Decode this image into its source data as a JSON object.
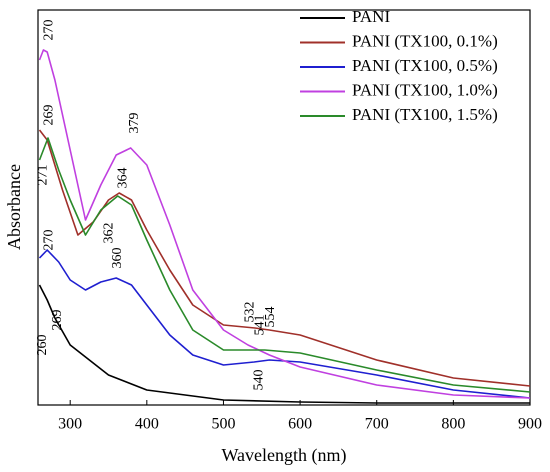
{
  "chart_data": {
    "type": "line",
    "xlabel": "Wavelength (nm)",
    "ylabel": "Absorbance",
    "xlim": [
      258,
      900
    ],
    "xticks": [
      300,
      400,
      500,
      600,
      700,
      800,
      900
    ],
    "ylim": [
      0,
      395
    ],
    "legend": "upper right",
    "series": [
      {
        "name": "PANI",
        "color": "#000000",
        "x": [
          260,
          270,
          280,
          300,
          350,
          400,
          500,
          600,
          700,
          900
        ],
        "values": [
          120,
          105,
          87,
          60,
          30,
          15,
          5,
          3,
          2,
          2
        ]
      },
      {
        "name": "PANI (TX100, 0.1%)",
        "color": "#a0302a",
        "x": [
          260,
          270,
          290,
          310,
          330,
          350,
          364,
          380,
          400,
          430,
          460,
          500,
          541,
          560,
          600,
          700,
          800,
          900
        ],
        "values": [
          275,
          265,
          215,
          170,
          183,
          205,
          212,
          205,
          175,
          135,
          100,
          80,
          77,
          75,
          70,
          45,
          27,
          19
        ]
      },
      {
        "name": "PANI (TX100, 0.5%)",
        "color": "#1f1fd0",
        "x": [
          260,
          270,
          285,
          300,
          320,
          340,
          360,
          380,
          400,
          430,
          460,
          500,
          540,
          560,
          600,
          700,
          800,
          900
        ],
        "values": [
          147,
          155,
          143,
          125,
          115,
          123,
          127,
          120,
          100,
          70,
          50,
          40,
          43,
          45,
          43,
          30,
          15,
          7
        ]
      },
      {
        "name": "PANI (TX100, 1.0%)",
        "color": "#c040e0",
        "x": [
          260,
          265,
          270,
          280,
          300,
          320,
          340,
          360,
          379,
          400,
          430,
          460,
          500,
          532,
          560,
          600,
          700,
          800,
          900
        ],
        "values": [
          345,
          355,
          353,
          325,
          255,
          185,
          220,
          250,
          257,
          240,
          180,
          115,
          75,
          60,
          50,
          38,
          20,
          10,
          7
        ]
      },
      {
        "name": "PANI (TX100, 1.5%)",
        "color": "#2a8a2a",
        "x": [
          260,
          271,
          285,
          300,
          320,
          340,
          362,
          380,
          400,
          430,
          460,
          500,
          554,
          600,
          700,
          800,
          900
        ],
        "values": [
          245,
          267,
          235,
          205,
          170,
          195,
          209,
          200,
          165,
          115,
          75,
          55,
          55,
          52,
          35,
          20,
          13
        ]
      }
    ],
    "annotations": [
      {
        "text": "270",
        "x": 273,
        "y": 375,
        "color": "#c040e0"
      },
      {
        "text": "269",
        "x": 273,
        "y": 290,
        "color": "#a0302a"
      },
      {
        "text": "271",
        "x": 265,
        "y": 230,
        "color": "#2a8a2a"
      },
      {
        "text": "379",
        "x": 384,
        "y": 282,
        "color": "#c040e0"
      },
      {
        "text": "364",
        "x": 369,
        "y": 227,
        "color": "#a0302a"
      },
      {
        "text": "362",
        "x": 351,
        "y": 172,
        "color": "#2a8a2a"
      },
      {
        "text": "270",
        "x": 273,
        "y": 165,
        "color": "#1f1fd0"
      },
      {
        "text": "360",
        "x": 362,
        "y": 147,
        "color": "#1f1fd0"
      },
      {
        "text": "269",
        "x": 284,
        "y": 85,
        "color": "#000000"
      },
      {
        "text": "260",
        "x": 264,
        "y": 60,
        "color": "#000000"
      },
      {
        "text": "532",
        "x": 535,
        "y": 93,
        "color": "#c040e0"
      },
      {
        "text": "541",
        "x": 548,
        "y": 80,
        "color": "#a0302a"
      },
      {
        "text": "554",
        "x": 562,
        "y": 88,
        "color": "#2a8a2a"
      },
      {
        "text": "540",
        "x": 547,
        "y": 25,
        "color": "#1f1fd0"
      }
    ]
  }
}
